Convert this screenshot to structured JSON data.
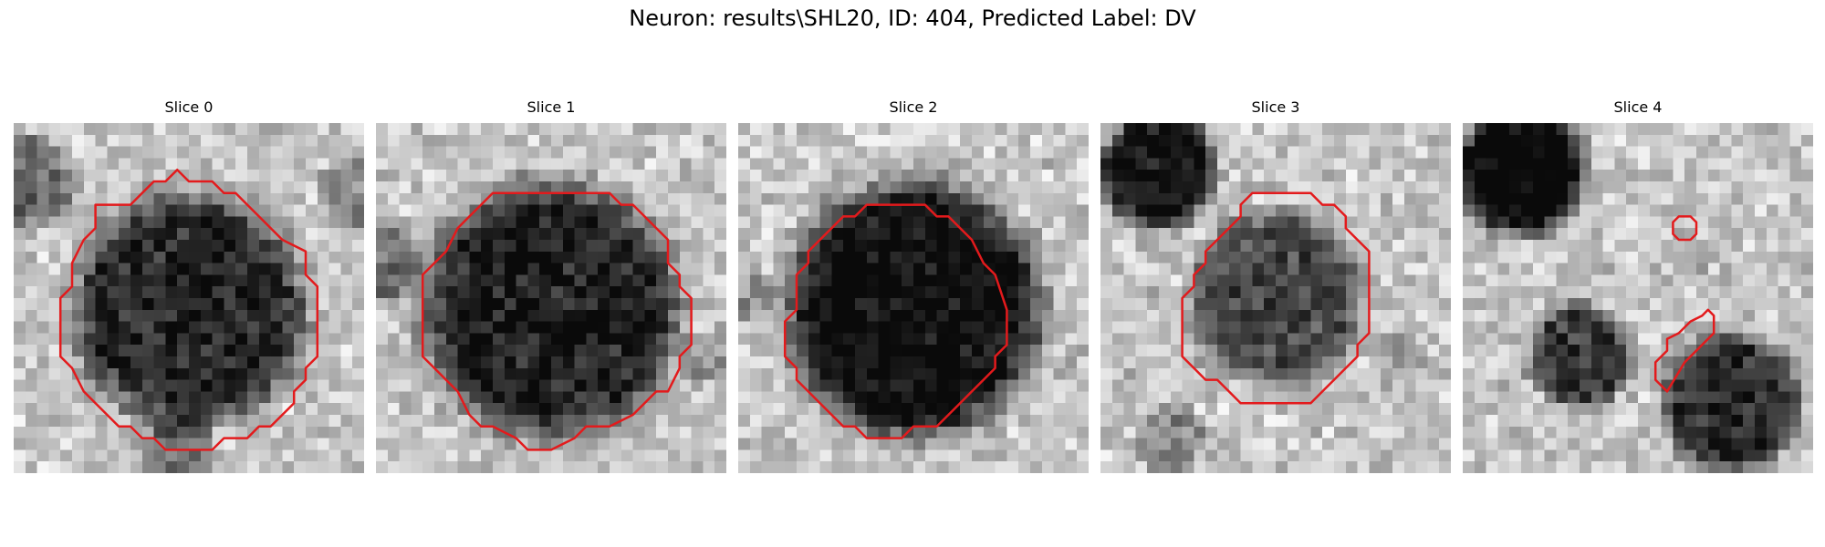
{
  "figure": {
    "title": "Neuron: results\\SHL20, ID: 404, Predicted Label: DV",
    "contour_color": "#e31a1c",
    "colormap": "grayscale"
  },
  "slices": [
    {
      "label": "Slice 0"
    },
    {
      "label": "Slice 1"
    },
    {
      "label": "Slice 2"
    },
    {
      "label": "Slice 3"
    },
    {
      "label": "Slice 4"
    }
  ]
}
